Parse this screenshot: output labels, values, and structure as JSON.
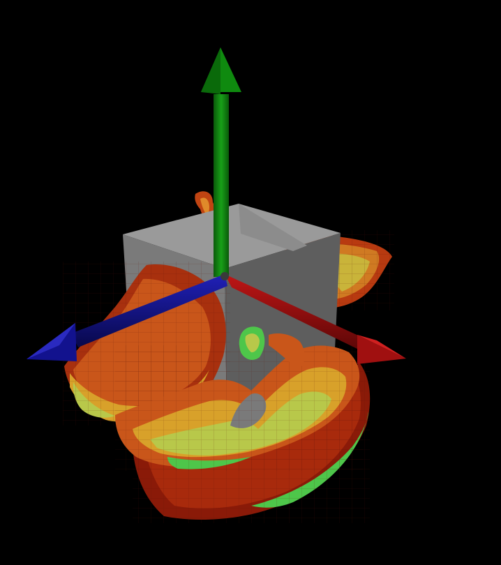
{
  "scene": {
    "background": "#000000",
    "objects": [
      {
        "name": "gray-cube",
        "color": "#8a8a8a"
      },
      {
        "name": "mesh-surface",
        "colors": [
          "#7a1208",
          "#a82a0c",
          "#c9561a",
          "#d8a12a",
          "#b8c84a",
          "#4ec64a",
          "#2aa6a0"
        ]
      }
    ],
    "axes": {
      "x": {
        "color": "#b01010",
        "direction": "right"
      },
      "y": {
        "color": "#0f8a0f",
        "direction": "up"
      },
      "z": {
        "color": "#12128e",
        "direction": "left"
      }
    }
  }
}
